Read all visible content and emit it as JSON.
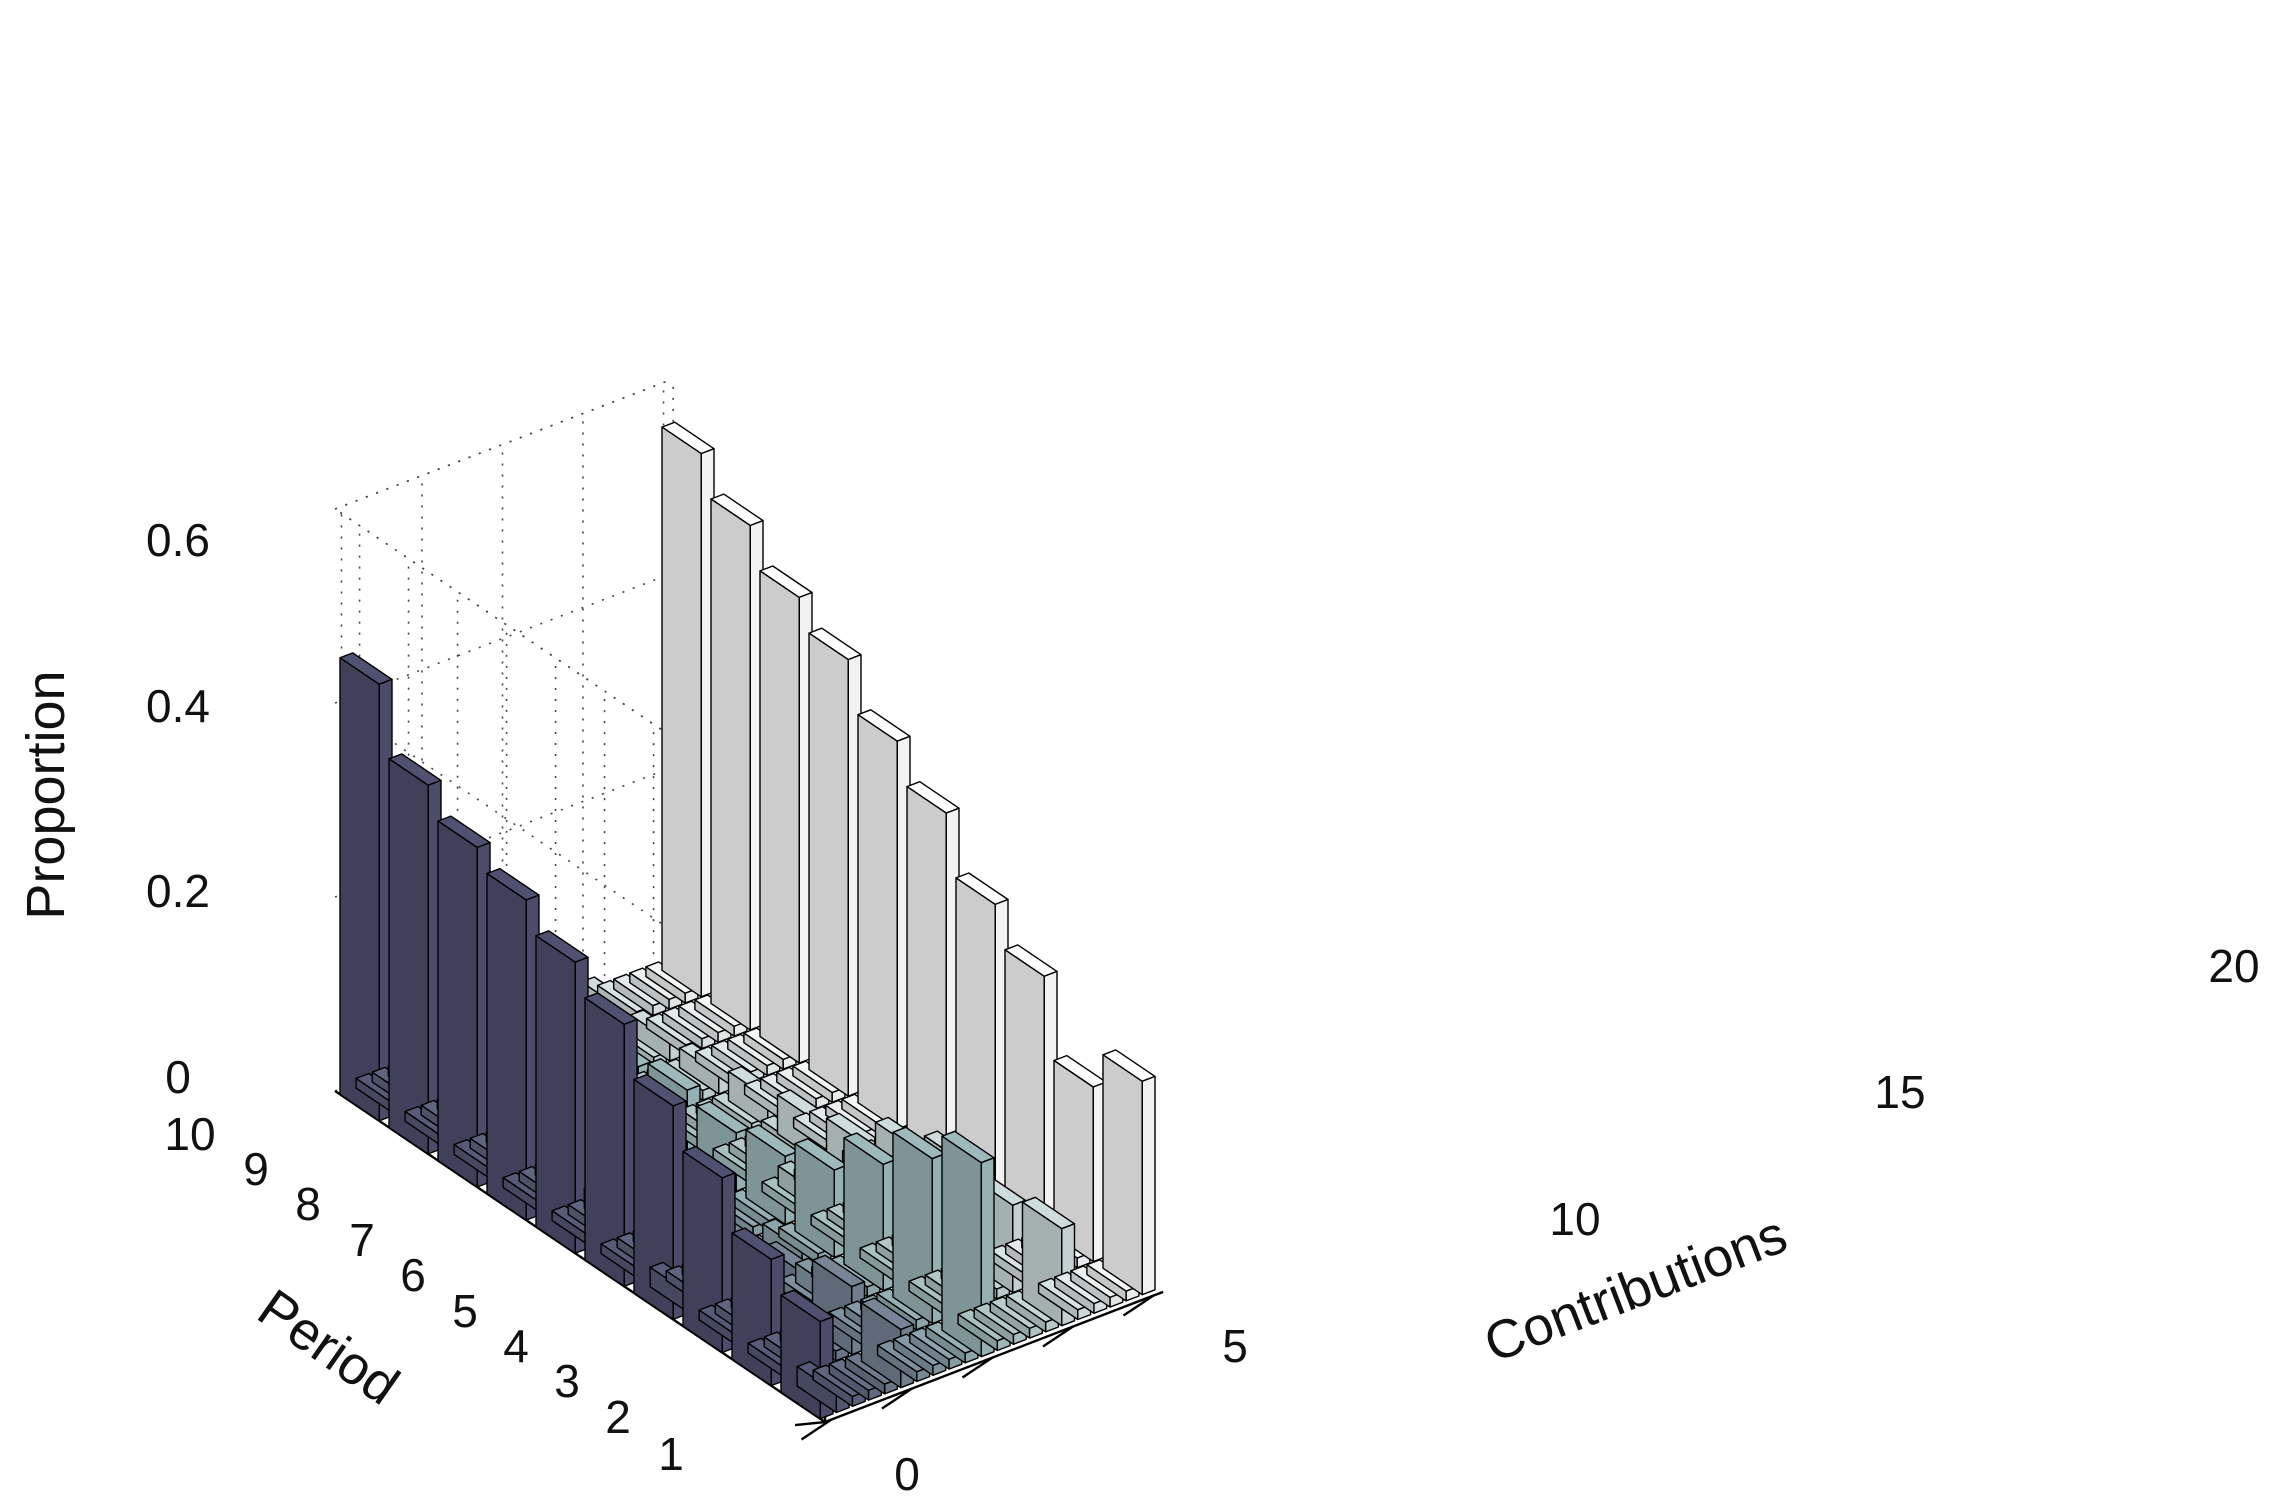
{
  "chart_data": {
    "type": "bar3d",
    "title": "",
    "xlabel": "Contributions",
    "ylabel": "Period",
    "zlabel": "Proportion",
    "x_range": [
      0,
      20
    ],
    "y_range": [
      1,
      10
    ],
    "zlim": [
      0,
      0.6
    ],
    "x_ticks": [
      "0",
      "5",
      "10",
      "15",
      "20"
    ],
    "y_ticks": [
      "1",
      "2",
      "3",
      "4",
      "5",
      "6",
      "7",
      "8",
      "9",
      "10"
    ],
    "z_ticks": [
      "0",
      "0.2",
      "0.4",
      "0.6"
    ],
    "grid": true,
    "colormap": [
      "#505070",
      "#9db9bb",
      "#ffffff"
    ],
    "contributions": [
      0,
      1,
      2,
      3,
      4,
      5,
      6,
      7,
      8,
      9,
      10,
      11,
      12,
      13,
      14,
      15,
      16,
      17,
      18,
      19,
      20
    ],
    "periods": [
      1,
      2,
      3,
      4,
      5,
      6,
      7,
      8,
      9,
      10
    ],
    "proportions_by_period": [
      {
        "period": 1,
        "values": [
          0.1,
          0.02,
          0.01,
          0.01,
          0.01,
          0.06,
          0.01,
          0.01,
          0.01,
          0.01,
          0.2,
          0.01,
          0.01,
          0.01,
          0.01,
          0.1,
          0.01,
          0.01,
          0.01,
          0.01,
          0.22
        ]
      },
      {
        "period": 2,
        "values": [
          0.13,
          0.01,
          0.01,
          0.01,
          0.01,
          0.07,
          0.01,
          0.01,
          0.01,
          0.01,
          0.17,
          0.01,
          0.01,
          0.01,
          0.01,
          0.09,
          0.01,
          0.01,
          0.01,
          0.01,
          0.18
        ]
      },
      {
        "period": 3,
        "values": [
          0.18,
          0.01,
          0.01,
          0.01,
          0.01,
          0.05,
          0.01,
          0.02,
          0.01,
          0.01,
          0.13,
          0.01,
          0.01,
          0.01,
          0.01,
          0.1,
          0.01,
          0.01,
          0.01,
          0.01,
          0.26
        ]
      },
      {
        "period": 4,
        "values": [
          0.22,
          0.02,
          0.01,
          0.01,
          0.01,
          0.04,
          0.01,
          0.01,
          0.02,
          0.01,
          0.09,
          0.01,
          0.01,
          0.01,
          0.01,
          0.08,
          0.01,
          0.01,
          0.01,
          0.01,
          0.3
        ]
      },
      {
        "period": 5,
        "values": [
          0.27,
          0.01,
          0.01,
          0.01,
          0.01,
          0.03,
          0.02,
          0.01,
          0.01,
          0.01,
          0.07,
          0.01,
          0.02,
          0.01,
          0.01,
          0.05,
          0.01,
          0.01,
          0.01,
          0.01,
          0.36
        ]
      },
      {
        "period": 6,
        "values": [
          0.3,
          0.01,
          0.01,
          0.02,
          0.01,
          0.04,
          0.01,
          0.01,
          0.01,
          0.01,
          0.06,
          0.01,
          0.01,
          0.01,
          0.02,
          0.04,
          0.01,
          0.01,
          0.01,
          0.01,
          0.4
        ]
      },
      {
        "period": 7,
        "values": [
          0.33,
          0.01,
          0.01,
          0.01,
          0.01,
          0.03,
          0.01,
          0.01,
          0.01,
          0.01,
          0.07,
          0.01,
          0.01,
          0.01,
          0.01,
          0.03,
          0.01,
          0.01,
          0.01,
          0.01,
          0.45
        ]
      },
      {
        "period": 8,
        "values": [
          0.35,
          0.01,
          0.01,
          0.01,
          0.01,
          0.02,
          0.01,
          0.01,
          0.01,
          0.01,
          0.06,
          0.01,
          0.01,
          0.01,
          0.01,
          0.02,
          0.01,
          0.01,
          0.01,
          0.01,
          0.48
        ]
      },
      {
        "period": 9,
        "values": [
          0.38,
          0.01,
          0.01,
          0.01,
          0.01,
          0.02,
          0.01,
          0.01,
          0.01,
          0.01,
          0.05,
          0.01,
          0.01,
          0.01,
          0.01,
          0.02,
          0.01,
          0.01,
          0.01,
          0.01,
          0.52
        ]
      },
      {
        "period": 10,
        "values": [
          0.45,
          0.01,
          0.01,
          0.01,
          0.01,
          0.02,
          0.01,
          0.01,
          0.01,
          0.01,
          0.04,
          0.01,
          0.01,
          0.01,
          0.01,
          0.02,
          0.01,
          0.01,
          0.01,
          0.01,
          0.56
        ]
      }
    ]
  }
}
